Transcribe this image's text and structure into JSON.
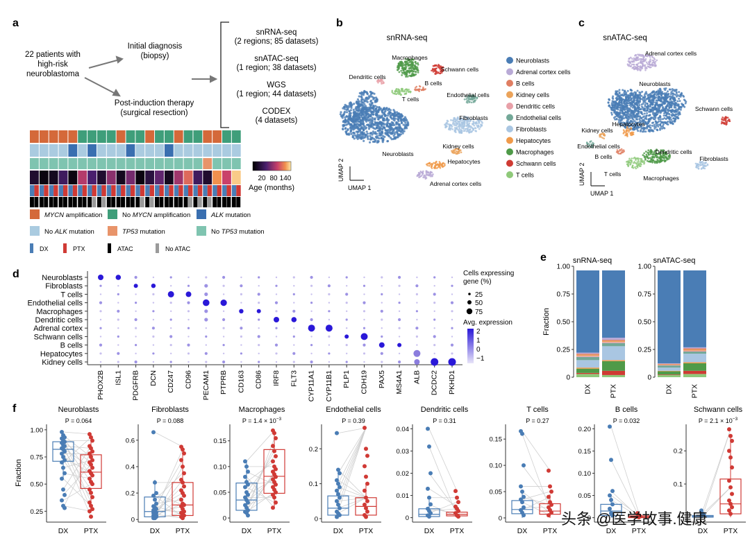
{
  "colors": {
    "dx": "#4a7db5",
    "ptx": "#d03a35",
    "gray": "#c8c8c8",
    "neuro": "#4a7db5",
    "mycn_amp": "#d4693a",
    "mycn_no": "#3f9e7a",
    "alk": "#3a6fb0",
    "alk_no": "#aacbe0",
    "tp53": "#e8946a",
    "tp53_no": "#7fc4b0",
    "atac": "#000000",
    "noatac": "#9a9a9a"
  },
  "panel_labels": {
    "a": "a",
    "b": "b",
    "c": "c",
    "d": "d",
    "e": "e",
    "f": "f"
  },
  "panel_a": {
    "patients": "22 patients with\nhigh-risk\nneuroblastoma",
    "initial": "Initial diagnosis\n(biopsy)",
    "postind": "Post-induction therapy\n(surgical resection)",
    "datasets": [
      "snRNA-seq\n(2 regions; 85 datasets)",
      "snATAC-seq\n(1 region; 38 datasets)",
      "WGS\n(1 region; 44 datasets)",
      "CODEX\n(4 datasets)"
    ],
    "mycn_row": [
      "amp",
      "amp",
      "amp",
      "amp",
      "amp",
      "no",
      "no",
      "no",
      "no",
      "amp",
      "no",
      "no",
      "amp",
      "no",
      "no",
      "amp",
      "no",
      "no",
      "amp",
      "amp",
      "no",
      "no"
    ],
    "alk_row": [
      "no",
      "no",
      "no",
      "no",
      "alk",
      "no",
      "alk",
      "no",
      "no",
      "no",
      "alk",
      "no",
      "no",
      "no",
      "alk",
      "no",
      "no",
      "no",
      "no",
      "no",
      "no",
      "no"
    ],
    "tp53_row": [
      "no",
      "no",
      "no",
      "no",
      "no",
      "no",
      "no",
      "no",
      "no",
      "no",
      "no",
      "no",
      "no",
      "no",
      "no",
      "no",
      "no",
      "no",
      "tp53",
      "no",
      "no",
      "no"
    ],
    "age_row": [
      0.15,
      0.05,
      0.1,
      0.3,
      0.05,
      0.6,
      0.35,
      0.15,
      0.5,
      0.1,
      0.45,
      0.05,
      0.2,
      0.4,
      0.1,
      0.55,
      0.75,
      0.3,
      0.15,
      0.85,
      0.65,
      0.95
    ],
    "age_label": "Age (months)",
    "age_ticks": [
      "20",
      "80",
      "140"
    ],
    "legend": [
      {
        "k": "mycn_amp",
        "italic": "MYCN",
        "text": " amplification"
      },
      {
        "k": "mycn_no",
        "pre": "No ",
        "italic": "MYCN",
        "text": " amplification"
      },
      {
        "k": "alk",
        "italic": "ALK",
        "text": " mutation"
      },
      {
        "k": "alk_no",
        "pre": "No ",
        "italic": "ALK",
        "text": " mutation"
      },
      {
        "k": "tp53",
        "italic": "TP53",
        "text": " mutation"
      },
      {
        "k": "tp53_no",
        "pre": "No ",
        "italic": "TP53",
        "text": " mutation"
      }
    ],
    "legend2": [
      {
        "k": "dx",
        "text": "DX"
      },
      {
        "k": "ptx",
        "text": "PTX"
      },
      {
        "k": "atac",
        "text": "ATAC"
      },
      {
        "k": "noatac",
        "text": "No ATAC"
      }
    ]
  },
  "panel_b": {
    "title": "snRNA-seq",
    "ux": "UMAP 1",
    "uy": "UMAP 2",
    "labels": [
      "Macrophages",
      "Schwann cells",
      "Dendritic cells",
      "B cells",
      "Endothelial cells",
      "T cells",
      "Fibroblasts",
      "Neuroblasts",
      "Kidney cells",
      "Hepatocytes",
      "Adrenal cortex cells"
    ]
  },
  "panel_c": {
    "title": "snATAC-seq",
    "ux": "UMAP 1",
    "uy": "UMAP 2",
    "labels": [
      "Adrenal cortex cells",
      "Neuroblasts",
      "Schwann cells",
      "Hepatocytes",
      "Kidney cells",
      "Endothelial cells",
      "B cells",
      "Dendritic cells",
      "T cells",
      "Macrophages",
      "Fibroblasts"
    ]
  },
  "cell_legend": [
    {
      "name": "Neuroblasts",
      "color": "#4a7db5"
    },
    {
      "name": "Adrenal cortex cells",
      "color": "#b9aad6"
    },
    {
      "name": "B cells",
      "color": "#e07e62"
    },
    {
      "name": "Kidney cells",
      "color": "#eba35a"
    },
    {
      "name": "Dendritic cells",
      "color": "#e8a0a8"
    },
    {
      "name": "Endothelial cells",
      "color": "#73a898"
    },
    {
      "name": "Fibroblasts",
      "color": "#a9c6e2"
    },
    {
      "name": "Hepatocytes",
      "color": "#f09a4a"
    },
    {
      "name": "Macrophages",
      "color": "#4f9a48"
    },
    {
      "name": "Schwann cells",
      "color": "#cf3b33"
    },
    {
      "name": "T cells",
      "color": "#8fc97a"
    }
  ],
  "panel_d": {
    "rows": [
      "Neuroblasts",
      "Fibroblasts",
      "T cells",
      "Endothelial cells",
      "Macrophages",
      "Dendritic cells",
      "Adrenal cortex",
      "Schwann cells",
      "B cells",
      "Hepatocytes",
      "Kidney cells"
    ],
    "genes": [
      "PHOX2B",
      "ISL1",
      "PDGFRB",
      "DCN",
      "CD247",
      "CD96",
      "PECAM1",
      "PTPRB",
      "CD163",
      "CD86",
      "IRF8",
      "FLT3",
      "CYP11A1",
      "CYP11B1",
      "PLP1",
      "CDH19",
      "PAX5",
      "MS4A1",
      "ALB",
      "DCDC2",
      "PKHD1"
    ],
    "size_title": "Cells expressing\ngene (%)",
    "size_ticks": [
      "25",
      "50",
      "75"
    ],
    "expr_title": "Avg. expression",
    "expr_ticks": [
      "2",
      "1",
      "0",
      "−1"
    ]
  },
  "chart_data": [
    {
      "type": "bar",
      "panel": "e",
      "title": "snRNA-seq",
      "categories": [
        "DX",
        "PTX"
      ],
      "ylabel": "Fraction",
      "ylim": [
        0,
        1
      ],
      "yticks": [
        "0",
        "0.25",
        "0.50",
        "0.75",
        "1.00"
      ],
      "series": [
        {
          "name": "Neuroblasts",
          "values": [
            0.77,
            0.63
          ]
        },
        {
          "name": "Adrenal cortex cells",
          "values": [
            0.01,
            0.02
          ]
        },
        {
          "name": "B cells",
          "values": [
            0.01,
            0.01
          ]
        },
        {
          "name": "Kidney cells",
          "values": [
            0.01,
            0.01
          ]
        },
        {
          "name": "Dendritic cells",
          "values": [
            0.01,
            0.01
          ]
        },
        {
          "name": "Endothelial cells",
          "values": [
            0.03,
            0.03
          ]
        },
        {
          "name": "Fibroblasts",
          "values": [
            0.07,
            0.13
          ]
        },
        {
          "name": "Hepatocytes",
          "values": [
            0.01,
            0.01
          ]
        },
        {
          "name": "Macrophages",
          "values": [
            0.04,
            0.09
          ]
        },
        {
          "name": "Schwann cells",
          "values": [
            0.01,
            0.04
          ]
        },
        {
          "name": "T cells",
          "values": [
            0.03,
            0.02
          ]
        }
      ]
    },
    {
      "type": "bar",
      "panel": "e",
      "title": "snATAC-seq",
      "categories": [
        "DX",
        "PTX"
      ],
      "ylim": [
        0,
        1
      ],
      "yticks": [
        "0",
        "0.25",
        "0.50",
        "0.75",
        "1.00"
      ],
      "series": [
        {
          "name": "Neuroblasts",
          "values": [
            0.87,
            0.72
          ]
        },
        {
          "name": "Adrenal cortex cells",
          "values": [
            0.005,
            0.01
          ]
        },
        {
          "name": "B cells",
          "values": [
            0.005,
            0.01
          ]
        },
        {
          "name": "Kidney cells",
          "values": [
            0.005,
            0.01
          ]
        },
        {
          "name": "Dendritic cells",
          "values": [
            0.005,
            0.01
          ]
        },
        {
          "name": "Endothelial cells",
          "values": [
            0.02,
            0.02
          ]
        },
        {
          "name": "Fibroblasts",
          "values": [
            0.03,
            0.08
          ]
        },
        {
          "name": "Hepatocytes",
          "values": [
            0.005,
            0.01
          ]
        },
        {
          "name": "Macrophages",
          "values": [
            0.03,
            0.07
          ]
        },
        {
          "name": "Schwann cells",
          "values": [
            0.005,
            0.03
          ]
        },
        {
          "name": "T cells",
          "values": [
            0.02,
            0.03
          ]
        }
      ]
    },
    {
      "type": "box",
      "panel": "f",
      "title": "Neuroblasts",
      "p": "P = 0.064",
      "ylabel": "Fraction",
      "categories": [
        "DX",
        "PTX"
      ],
      "ylim": [
        0.15,
        1.05
      ],
      "yticks": [
        0.25,
        0.5,
        0.75,
        1.0
      ],
      "ytick_labels": [
        "0.25",
        "0.50",
        "0.75",
        "1.00"
      ],
      "box": [
        [
          0.55,
          0.71,
          0.82,
          0.89,
          0.99
        ],
        [
          0.27,
          0.46,
          0.61,
          0.77,
          0.96
        ]
      ],
      "points": [
        [
          0.98,
          0.95,
          0.93,
          0.92,
          0.9,
          0.89,
          0.88,
          0.86,
          0.85,
          0.83,
          0.82,
          0.8,
          0.78,
          0.75,
          0.72,
          0.7,
          0.65,
          0.6,
          0.55,
          0.45,
          0.4,
          0.35,
          0.3,
          0.28
        ],
        [
          0.96,
          0.93,
          0.9,
          0.85,
          0.83,
          0.8,
          0.78,
          0.75,
          0.72,
          0.7,
          0.68,
          0.65,
          0.62,
          0.6,
          0.58,
          0.55,
          0.52,
          0.5,
          0.45,
          0.42,
          0.38,
          0.33,
          0.3,
          0.27,
          0.25,
          0.2
        ]
      ]
    },
    {
      "type": "box",
      "panel": "f",
      "title": "Fibroblasts",
      "p": "P = 0.088",
      "categories": [
        "DX",
        "PTX"
      ],
      "ylim": [
        -0.02,
        0.72
      ],
      "yticks": [
        0,
        0.2,
        0.4,
        0.6
      ],
      "ytick_labels": [
        "0",
        "0.2",
        "0.4",
        "0.6"
      ],
      "box": [
        [
          0.0,
          0.02,
          0.06,
          0.17,
          0.3
        ],
        [
          0.0,
          0.03,
          0.11,
          0.28,
          0.55
        ]
      ],
      "points": [
        [
          0.66,
          0.28,
          0.2,
          0.18,
          0.15,
          0.12,
          0.1,
          0.09,
          0.08,
          0.07,
          0.06,
          0.05,
          0.05,
          0.04,
          0.03,
          0.03,
          0.02,
          0.02,
          0.01,
          0.01
        ],
        [
          0.55,
          0.53,
          0.5,
          0.45,
          0.4,
          0.35,
          0.3,
          0.28,
          0.25,
          0.22,
          0.2,
          0.18,
          0.15,
          0.12,
          0.11,
          0.1,
          0.08,
          0.06,
          0.05,
          0.04,
          0.03,
          0.02,
          0.01
        ]
      ]
    },
    {
      "type": "box",
      "panel": "f",
      "title": "Macrophages",
      "p": "P = 1.4 × 10",
      "p_exp": "−3",
      "categories": [
        "DX",
        "PTX"
      ],
      "ylim": [
        -0.008,
        0.182
      ],
      "yticks": [
        0,
        0.05,
        0.1,
        0.15
      ],
      "ytick_labels": [
        "0",
        "0.05",
        "0.10",
        "0.15"
      ],
      "box": [
        [
          0.005,
          0.015,
          0.035,
          0.068,
          0.11
        ],
        [
          0.02,
          0.048,
          0.081,
          0.133,
          0.17
        ]
      ],
      "points": [
        [
          0.11,
          0.1,
          0.09,
          0.08,
          0.07,
          0.065,
          0.06,
          0.05,
          0.045,
          0.04,
          0.035,
          0.03,
          0.025,
          0.02,
          0.015,
          0.012,
          0.01,
          0.005
        ],
        [
          0.17,
          0.165,
          0.155,
          0.14,
          0.13,
          0.12,
          0.11,
          0.1,
          0.095,
          0.09,
          0.085,
          0.08,
          0.075,
          0.07,
          0.065,
          0.06,
          0.055,
          0.05,
          0.045,
          0.04,
          0.03,
          0.02
        ]
      ]
    },
    {
      "type": "box",
      "panel": "f",
      "title": "Endothelial cells",
      "p": "P = 0.39",
      "categories": [
        "DX",
        "PTX"
      ],
      "ylim": [
        -0.01,
        0.27
      ],
      "yticks": [
        0,
        0.1,
        0.2
      ],
      "ytick_labels": [
        "0",
        "0.1",
        "0.2"
      ],
      "box": [
        [
          0.0,
          0.01,
          0.03,
          0.065,
          0.14
        ],
        [
          0.0,
          0.01,
          0.035,
          0.06,
          0.1
        ]
      ],
      "points": [
        [
          0.245,
          0.14,
          0.13,
          0.11,
          0.1,
          0.09,
          0.08,
          0.07,
          0.06,
          0.05,
          0.04,
          0.03,
          0.02,
          0.015,
          0.01,
          0.005
        ],
        [
          0.26,
          0.2,
          0.18,
          0.15,
          0.12,
          0.1,
          0.08,
          0.06,
          0.05,
          0.04,
          0.03,
          0.02,
          0.01,
          0.005
        ]
      ]
    },
    {
      "type": "box",
      "panel": "f",
      "title": "Dendritic cells",
      "p": "P = 0.31",
      "categories": [
        "DX",
        "PTX"
      ],
      "ylim": [
        -0.002,
        0.042
      ],
      "yticks": [
        0,
        0.01,
        0.02,
        0.03,
        0.04
      ],
      "ytick_labels": [
        "0",
        "0.01",
        "0.02",
        "0.03",
        "0.04"
      ],
      "box": [
        [
          0.0,
          0.0005,
          0.0015,
          0.004,
          0.008
        ],
        [
          0.0,
          0.0008,
          0.0015,
          0.0025,
          0.004
        ]
      ],
      "points": [
        [
          0.04,
          0.032,
          0.02,
          0.013,
          0.009,
          0.006,
          0.004,
          0.003,
          0.002,
          0.001,
          0.0005
        ],
        [
          0.012,
          0.009,
          0.007,
          0.005,
          0.004,
          0.003,
          0.002,
          0.001,
          0.0005
        ]
      ]
    },
    {
      "type": "box",
      "panel": "f",
      "title": "T cells",
      "p": "P = 0.27",
      "categories": [
        "DX",
        "PTX"
      ],
      "ylim": [
        -0.008,
        0.178
      ],
      "yticks": [
        0,
        0.05,
        0.1,
        0.15
      ],
      "ytick_labels": [
        "0",
        "0.05",
        "0.10",
        "0.15"
      ],
      "box": [
        [
          0.0,
          0.008,
          0.016,
          0.033,
          0.05
        ],
        [
          0.0,
          0.007,
          0.013,
          0.027,
          0.045
        ]
      ],
      "points": [
        [
          0.165,
          0.16,
          0.1,
          0.06,
          0.05,
          0.04,
          0.035,
          0.03,
          0.02,
          0.015,
          0.01,
          0.005
        ],
        [
          0.09,
          0.06,
          0.05,
          0.04,
          0.03,
          0.025,
          0.02,
          0.015,
          0.01,
          0.005
        ]
      ]
    },
    {
      "type": "box",
      "panel": "f",
      "title": "B cells",
      "p": "P = 0.032",
      "categories": [
        "DX",
        "PTX"
      ],
      "ylim": [
        -0.01,
        0.21
      ],
      "yticks": [
        0,
        0.05,
        0.1,
        0.15,
        0.2
      ],
      "ytick_labels": [
        "0",
        "0.05",
        "0.10",
        "0.15",
        "0.20"
      ],
      "box": [
        [
          0.0,
          0.005,
          0.015,
          0.03,
          0.05
        ],
        [
          0.0,
          0.0,
          0.002,
          0.004,
          0.006
        ]
      ],
      "points": [
        [
          0.205,
          0.13,
          0.06,
          0.05,
          0.04,
          0.03,
          0.02,
          0.01,
          0.005
        ],
        [
          0.01,
          0.005,
          0.003,
          0.002,
          0.001
        ]
      ]
    },
    {
      "type": "box",
      "panel": "f",
      "title": "Schwann cells",
      "p": "P = 2.1 × 10",
      "p_exp": "−3",
      "categories": [
        "DX",
        "PTX"
      ],
      "ylim": [
        -0.015,
        0.28
      ],
      "yticks": [
        0.1,
        0.2
      ],
      "ytick_labels": [
        "0.1",
        "0.2"
      ],
      "box": [
        [
          0.0,
          0.0,
          0.002,
          0.005,
          0.01
        ],
        [
          0.0,
          0.01,
          0.04,
          0.115,
          0.25
        ]
      ],
      "points": [
        [
          0.02,
          0.01,
          0.005,
          0.003
        ],
        [
          0.265,
          0.245,
          0.23,
          0.2,
          0.18,
          0.15,
          0.11,
          0.09,
          0.07,
          0.05,
          0.04,
          0.03,
          0.02,
          0.01
        ]
      ]
    }
  ],
  "watermark": "头条 @医学故事.健康"
}
